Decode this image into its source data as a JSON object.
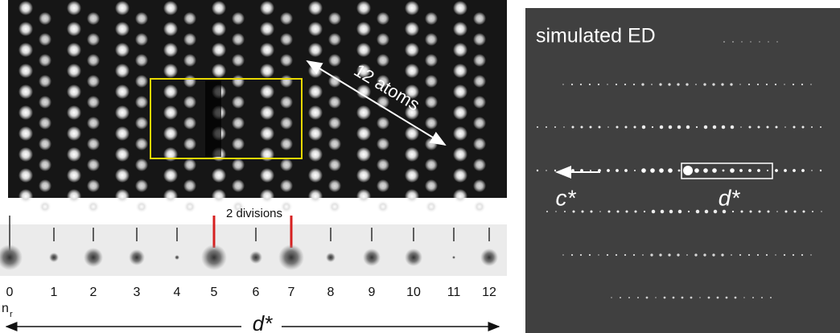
{
  "left_panel": {
    "annotation": "12 atoms",
    "division_label": "2 divisions",
    "indices": [
      "0",
      "1",
      "2",
      "3",
      "4",
      "5",
      "6",
      "7",
      "8",
      "9",
      "10",
      "11",
      "12"
    ],
    "index_symbol": "n",
    "index_subscript": "r",
    "axis_label": "d*"
  },
  "right_panel": {
    "title": "simulated ED",
    "c_label": "c*",
    "d_label": "d*"
  }
}
